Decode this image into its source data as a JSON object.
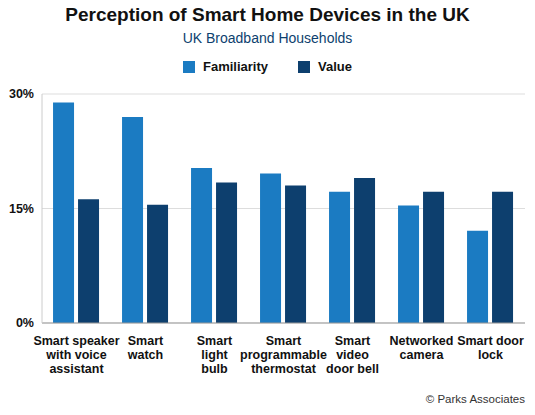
{
  "chart_data": {
    "type": "bar",
    "title": "Perception of Smart Home Devices in the UK",
    "subtitle": "UK Broadband Households",
    "categories": [
      "Smart speaker\nwith voice\nassistant",
      "Smart\nwatch",
      "Smart\nlight\nbulb",
      "Smart\nprogrammable\nthermostat",
      "Smart\nvideo\ndoor bell",
      "Networked\ncamera",
      "Smart door\nlock"
    ],
    "series": [
      {
        "name": "Familiarity",
        "color": "#1b7bc2",
        "values": [
          28.9,
          27,
          20.3,
          19.6,
          17.2,
          15.4,
          12.1
        ]
      },
      {
        "name": "Value",
        "color": "#0d3f6e",
        "values": [
          16.2,
          15.5,
          18.4,
          18,
          19,
          17.2,
          17.2
        ]
      }
    ],
    "ylim": [
      0,
      30
    ],
    "yticks": [
      {
        "value": 0,
        "label": "0%"
      },
      {
        "value": 15,
        "label": "15%"
      },
      {
        "value": 30,
        "label": "30%"
      }
    ],
    "grid": true,
    "legend": "top",
    "annotations": [
      "© Parks Associates"
    ]
  }
}
